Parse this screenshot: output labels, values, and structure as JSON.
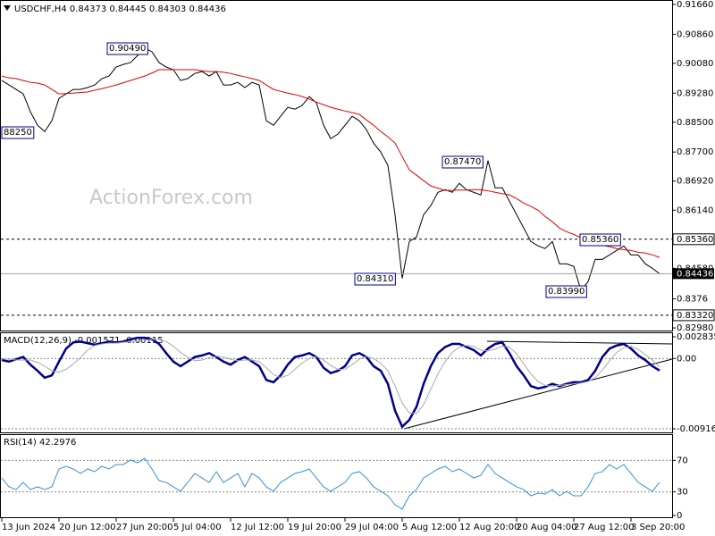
{
  "chart_data": [
    {
      "type": "line",
      "title": "USDCHF,H4  0.84373 0.84445 0.84303 0.84436",
      "watermark": "ActionForex.com",
      "categories": [
        "13 Jun 2024",
        null,
        null,
        null,
        null,
        null,
        null,
        null,
        "20 Jun 12:00",
        null,
        null,
        null,
        null,
        null,
        null,
        null,
        "27 Jun 20:00",
        null,
        null,
        null,
        null,
        null,
        null,
        null,
        "5 Jul 04:00",
        null,
        null,
        null,
        null,
        null,
        null,
        null,
        "12 Jul 12:00",
        null,
        null,
        null,
        null,
        null,
        null,
        null,
        "19 Jul 20:00",
        null,
        null,
        null,
        null,
        null,
        null,
        null,
        "29 Jul 04:00",
        null,
        null,
        null,
        null,
        null,
        null,
        null,
        "5 Aug 12:00",
        null,
        null,
        null,
        null,
        null,
        null,
        null,
        "12 Aug 20:00",
        null,
        null,
        null,
        null,
        null,
        null,
        null,
        "20 Aug 04:00",
        null,
        null,
        null,
        null,
        null,
        null,
        null,
        "27 Aug 12:00",
        null,
        null,
        null,
        null,
        null,
        null,
        null,
        "3 Sep 20:00",
        null,
        null,
        null,
        null
      ],
      "series": [
        {
          "color": "#000000",
          "values": [
            0.8962,
            0.895,
            0.8938,
            0.8926,
            0.8878,
            0.8842,
            0.8825,
            0.8854,
            0.8914,
            0.8926,
            0.8938,
            0.8938,
            0.8943,
            0.895,
            0.8967,
            0.8974,
            0.8998,
            0.9005,
            0.901,
            0.9029,
            0.9049,
            0.9039,
            0.901,
            0.8998,
            0.8991,
            0.8962,
            0.8967,
            0.8981,
            0.8986,
            0.8974,
            0.8986,
            0.895,
            0.895,
            0.8957,
            0.8943,
            0.8957,
            0.895,
            0.8854,
            0.8842,
            0.8866,
            0.889,
            0.8885,
            0.8895,
            0.8919,
            0.8902,
            0.8842,
            0.8806,
            0.8818,
            0.8842,
            0.8866,
            0.8854,
            0.883,
            0.8794,
            0.877,
            0.8734,
            0.8602,
            0.8431,
            0.853,
            0.8542,
            0.8602,
            0.8626,
            0.8662,
            0.8669,
            0.8662,
            0.8686,
            0.8669,
            0.8662,
            0.8655,
            0.8747,
            0.8674,
            0.8674,
            0.8638,
            0.8602,
            0.8566,
            0.853,
            0.8518,
            0.8511,
            0.853,
            0.847,
            0.847,
            0.8463,
            0.8399,
            0.8422,
            0.8482,
            0.8482,
            0.8494,
            0.8506,
            0.8518,
            0.8494,
            0.8494,
            0.847,
            0.8458,
            0.84436
          ]
        },
        {
          "color": "#e00000",
          "values": [
            0.8974,
            0.8969,
            0.8967,
            0.8962,
            0.8957,
            0.8955,
            0.895,
            0.8938,
            0.8926,
            0.8927,
            0.8928,
            0.893,
            0.8931,
            0.8936,
            0.894,
            0.8945,
            0.895,
            0.8956,
            0.8962,
            0.8968,
            0.8974,
            0.8982,
            0.8991,
            0.8991,
            0.8991,
            0.8991,
            0.8991,
            0.8991,
            0.8988,
            0.8986,
            0.8986,
            0.8984,
            0.8981,
            0.8976,
            0.8972,
            0.8967,
            0.8962,
            0.895,
            0.8938,
            0.8933,
            0.8928,
            0.8924,
            0.8919,
            0.8912,
            0.8904,
            0.8897,
            0.889,
            0.8885,
            0.888,
            0.8876,
            0.8871,
            0.8856,
            0.8842,
            0.8825,
            0.8811,
            0.8794,
            0.8758,
            0.8722,
            0.8708,
            0.8693,
            0.8679,
            0.8673,
            0.8667,
            0.8667,
            0.8668,
            0.8668,
            0.8669,
            0.8669,
            0.8666,
            0.8662,
            0.8658,
            0.8655,
            0.8645,
            0.8633,
            0.8624,
            0.8614,
            0.8597,
            0.8583,
            0.8566,
            0.8556,
            0.8549,
            0.854,
            0.853,
            0.8525,
            0.852,
            0.8516,
            0.8511,
            0.8508,
            0.8506,
            0.8501,
            0.8499,
            0.8494,
            0.8487
          ]
        }
      ],
      "ylim": [
        0.8291,
        0.9178
      ],
      "yticks": [
        {
          "value": 0.9166,
          "label": "0.91660"
        },
        {
          "value": 0.9086,
          "label": "0.90860"
        },
        {
          "value": 0.9008,
          "label": "0.90080"
        },
        {
          "value": 0.8928,
          "label": "0.89280"
        },
        {
          "value": 0.885,
          "label": "0.88500"
        },
        {
          "value": 0.877,
          "label": "0.87700"
        },
        {
          "value": 0.8692,
          "label": "0.86920"
        },
        {
          "value": 0.8614,
          "label": "0.86140"
        },
        {
          "value": 0.8458,
          "label": "0.84580"
        },
        0.8376,
        {
          "value": 0.8298,
          "label": "0.82980"
        }
      ],
      "levels": [
        {
          "value": 0.8536,
          "label": "0.85360"
        },
        {
          "value": 0.8332,
          "label": "0.83320"
        }
      ],
      "annotations": [
        "0.90490",
        "88250",
        "0.87470",
        "0.84310",
        "0.85360",
        "0.83990"
      ],
      "grid": false
    },
    {
      "type": "line",
      "title": "MACD(12,26,9) -0.001571 -0.00115",
      "series": [
        {
          "color": "#00008b",
          "values": [
            -0.0002,
            -0.0004,
            -0.0001,
            0.0002,
            -0.0008,
            -0.0016,
            -0.0025,
            -0.0022,
            -0.0004,
            0.0013,
            0.0021,
            0.0022,
            0.002,
            0.0018,
            0.002,
            0.0022,
            0.0021,
            0.0022,
            0.0025,
            0.0027,
            0.0027,
            0.0025,
            0.0019,
            0.0007,
            -0.0004,
            -0.001,
            -0.0004,
            0.0002,
            0.0004,
            0.0007,
            0.0002,
            -0.0004,
            -0.0008,
            -0.0002,
            0.0002,
            -0.0004,
            -0.001,
            -0.0028,
            -0.0031,
            -0.0022,
            -0.0008,
            0.0002,
            0.0004,
            0.0007,
            0.0002,
            -0.0012,
            -0.0019,
            -0.0016,
            -0.001,
            0.0004,
            0.0007,
            0.0002,
            -0.001,
            -0.0016,
            -0.0033,
            -0.0068,
            -0.0089,
            -0.008,
            -0.0063,
            -0.0033,
            -0.001,
            0.0007,
            0.0015,
            0.0019,
            0.0019,
            0.0015,
            0.0011,
            0.0004,
            0.0013,
            0.0019,
            0.0021,
            0.0007,
            -0.001,
            -0.0022,
            -0.0036,
            -0.0039,
            -0.0037,
            -0.0033,
            -0.0036,
            -0.0033,
            -0.0031,
            -0.0031,
            -0.0028,
            -0.0016,
            0.0002,
            0.0013,
            0.0017,
            0.0019,
            0.0013,
            0.0004,
            -0.0002,
            -0.001,
            -0.001571
          ]
        },
        {
          "color": "#a9a9a9",
          "values": [
            0.0,
            -0.0001,
            -0.0002,
            -0.0002,
            -0.0002,
            -0.0005,
            -0.001,
            -0.0016,
            -0.0018,
            -0.0014,
            -0.0007,
            0.0001,
            0.0011,
            0.0017,
            0.0019,
            0.002,
            0.002,
            0.0021,
            0.0022,
            0.0023,
            0.0024,
            0.0025,
            0.0025,
            0.0022,
            0.0016,
            0.0008,
            0.0002,
            -0.0003,
            -0.0002,
            0.0001,
            0.0003,
            0.0002,
            -0.0001,
            -0.0003,
            -0.0002,
            -0.0002,
            -0.0004,
            -0.0012,
            -0.0021,
            -0.0025,
            -0.0022,
            -0.0014,
            -0.0006,
            0.0,
            0.0003,
            -0.0002,
            -0.0009,
            -0.0014,
            -0.0014,
            -0.0008,
            -0.0001,
            0.0003,
            0.0,
            -0.0006,
            -0.0016,
            -0.0036,
            -0.0058,
            -0.0071,
            -0.0072,
            -0.006,
            -0.004,
            -0.002,
            -0.0004,
            0.0008,
            0.0015,
            0.0017,
            0.0016,
            0.0011,
            0.001,
            0.0012,
            0.0016,
            0.0015,
            0.0006,
            -0.0007,
            -0.002,
            -0.003,
            -0.0035,
            -0.0036,
            -0.0035,
            -0.0034,
            -0.0033,
            -0.0032,
            -0.003,
            -0.0025,
            -0.0015,
            -0.0003,
            0.0008,
            0.0014,
            0.0016,
            0.0012,
            0.0005,
            -0.0002,
            -0.00115
          ]
        }
      ],
      "ylim": [
        -0.0094,
        0.0033
      ],
      "yticks": [
        0.002835,
        {
          "value": 0,
          "label": "0.00"
        },
        -0.009161
      ],
      "grid": true
    },
    {
      "type": "line",
      "title": "RSI(14) 42.2976",
      "series": [
        {
          "color": "#3a8fd0",
          "values": [
            47.7,
            36.4,
            33.0,
            42.0,
            33.0,
            36.4,
            33.0,
            36.4,
            59.1,
            62.5,
            59.1,
            53.4,
            59.1,
            55.7,
            62.5,
            59.1,
            64.8,
            64.8,
            70.5,
            67.0,
            72.7,
            59.1,
            44.3,
            42.0,
            36.4,
            30.7,
            42.0,
            53.4,
            47.7,
            42.0,
            55.7,
            42.0,
            47.7,
            53.4,
            36.4,
            53.4,
            47.7,
            36.4,
            30.7,
            42.0,
            47.7,
            53.4,
            55.7,
            59.1,
            47.7,
            36.4,
            30.7,
            36.4,
            42.0,
            53.4,
            55.7,
            47.7,
            36.4,
            30.7,
            25.0,
            13.6,
            8.0,
            25.0,
            33.0,
            47.7,
            53.4,
            59.1,
            62.5,
            55.7,
            59.1,
            53.4,
            47.7,
            51.1,
            64.8,
            53.4,
            47.7,
            42.0,
            36.4,
            33.0,
            25.0,
            28.4,
            27.3,
            33.0,
            25.0,
            30.7,
            25.0,
            25.0,
            36.4,
            53.4,
            55.7,
            64.8,
            59.1,
            64.8,
            53.4,
            42.0,
            36.4,
            30.7,
            42.2976
          ]
        }
      ],
      "ylim": [
        0,
        100
      ],
      "yticks": [
        0,
        30,
        70
      ],
      "grid": true
    }
  ]
}
